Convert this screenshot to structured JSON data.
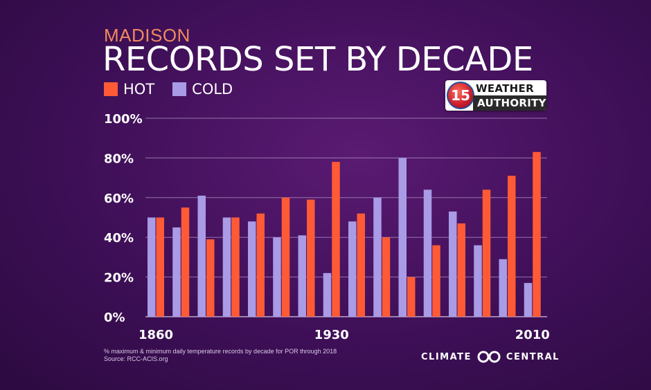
{
  "header": {
    "subtitle": "MADISON",
    "title": "RECORDS SET BY DECADE"
  },
  "legend": {
    "hot_label": "HOT",
    "cold_label": "COLD"
  },
  "logo": {
    "number": "15",
    "line1": "WEATHER",
    "line2": "AUTHORITY"
  },
  "footer": {
    "note": "% maximum & minimum daily temperature records by decade for POR through 2018",
    "source": "Source: RCC-ACIS.org",
    "brand_left": "CLIMATE",
    "brand_right": "CENTRAL"
  },
  "colors": {
    "hot": "#ff5a36",
    "cold": "#a99be6",
    "gridline": "#c9b6d9",
    "background": "#3e0f57"
  },
  "chart_data": {
    "type": "bar",
    "categories": [
      "1860",
      "1870",
      "1880",
      "1890",
      "1900",
      "1910",
      "1920",
      "1930",
      "1940",
      "1950",
      "1960",
      "1970",
      "1980",
      "1990",
      "2000",
      "2010"
    ],
    "series": [
      {
        "name": "COLD",
        "values": [
          50,
          45,
          61,
          50,
          48,
          40,
          41,
          22,
          48,
          60,
          80,
          64,
          53,
          36,
          29,
          17
        ]
      },
      {
        "name": "HOT",
        "values": [
          50,
          55,
          39,
          50,
          52,
          60,
          59,
          78,
          52,
          40,
          20,
          36,
          47,
          64,
          71,
          83
        ]
      }
    ],
    "ylim": [
      0,
      100
    ],
    "yticks": [
      0,
      20,
      40,
      60,
      80,
      100
    ],
    "ytick_labels": [
      "0%",
      "20%",
      "40%",
      "60%",
      "80%",
      "100%"
    ],
    "xtick_labels": [
      "1860",
      "",
      "",
      "",
      "",
      "",
      "",
      "1930",
      "",
      "",
      "",
      "",
      "",
      "",
      "",
      "2010"
    ],
    "grid": true,
    "legend_position": "top-left"
  }
}
